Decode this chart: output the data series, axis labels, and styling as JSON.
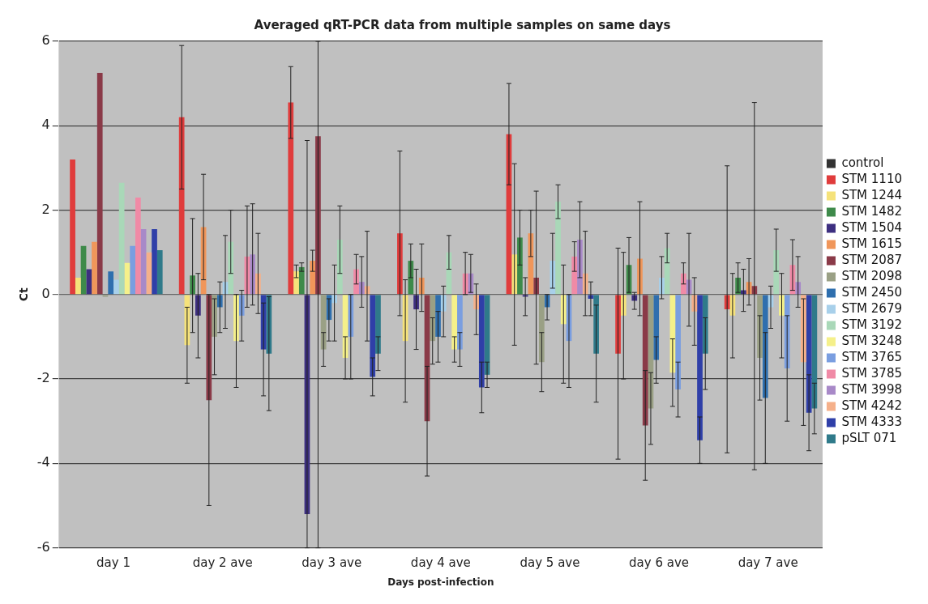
{
  "chart_data": {
    "type": "bar",
    "title": "Averaged qRT-PCR data from multiple samples on same days",
    "xlabel": "Days post-infection",
    "ylabel": "Ct",
    "categories": [
      "day 1",
      "day 2 ave",
      "day 3 ave",
      "day 4 ave",
      "day 5 ave",
      "day 6 ave",
      "day 7 ave"
    ],
    "ylim": [
      -6,
      6
    ],
    "yticks": [
      -6,
      -4,
      -2,
      0,
      2,
      4,
      6
    ],
    "grid": "y",
    "legend": "right",
    "series": [
      {
        "name": "control",
        "color": "#333333",
        "values": [
          0,
          0,
          0,
          0,
          0,
          0,
          0
        ]
      },
      {
        "name": "STM 1110",
        "color": "#e03c3c",
        "values": [
          3.2,
          4.2,
          4.55,
          1.45,
          3.8,
          -1.4,
          -0.35
        ],
        "errors": [
          null,
          1.7,
          0.85,
          1.95,
          1.2,
          2.5,
          3.4
        ]
      },
      {
        "name": "STM 1244",
        "color": "#f5e27a",
        "values": [
          0.4,
          -1.2,
          0.55,
          -1.1,
          0.95,
          -0.5,
          -0.5
        ],
        "errors": [
          null,
          0.9,
          0.15,
          1.45,
          2.15,
          1.5,
          1.0
        ]
      },
      {
        "name": "STM 1482",
        "color": "#3e8a4a",
        "values": [
          1.15,
          0.45,
          0.65,
          0.8,
          1.35,
          0.7,
          0.4
        ],
        "errors": [
          null,
          1.35,
          0.1,
          0.4,
          0.65,
          0.65,
          0.35
        ]
      },
      {
        "name": "STM 1504",
        "color": "#3d2f80",
        "values": [
          0.6,
          -0.5,
          -5.2,
          -0.35,
          -0.05,
          -0.15,
          0.1
        ],
        "errors": [
          null,
          1.0,
          [
            -6,
            3.65
          ],
          0.95,
          0.45,
          0.2,
          0.5
        ]
      },
      {
        "name": "STM 1615",
        "color": "#f0965a",
        "values": [
          1.25,
          1.6,
          0.8,
          0.4,
          1.45,
          0.85,
          0.3
        ],
        "errors": [
          null,
          1.25,
          0.25,
          0.8,
          0.55,
          1.35,
          0.55
        ]
      },
      {
        "name": "STM 2087",
        "color": "#8a3a48",
        "values": [
          5.25,
          -2.5,
          3.75,
          -3.0,
          0.4,
          -3.1,
          0.2
        ],
        "errors": [
          null,
          2.5,
          [
            -6,
            6
          ],
          1.3,
          2.05,
          1.3,
          4.35
        ]
      },
      {
        "name": "STM 2098",
        "color": "#9aa085",
        "values": [
          -0.05,
          -1.0,
          -1.3,
          -1.1,
          -1.6,
          -2.7,
          -1.5
        ],
        "errors": [
          null,
          0.9,
          0.4,
          0.55,
          0.7,
          0.85,
          1.0
        ]
      },
      {
        "name": "STM 2450",
        "color": "#2f6fae",
        "values": [
          0.55,
          -0.3,
          -0.6,
          -1.0,
          -0.3,
          -1.55,
          -2.45
        ],
        "errors": [
          null,
          0.6,
          0.5,
          0.6,
          0.3,
          0.55,
          1.55
        ]
      },
      {
        "name": "STM 2679",
        "color": "#a8d0ea",
        "values": [
          0.35,
          0.3,
          -0.2,
          -0.4,
          0.8,
          0.4,
          -0.3
        ],
        "errors": [
          null,
          1.1,
          0.9,
          0.6,
          0.65,
          0.5,
          0.5
        ]
      },
      {
        "name": "STM 3192",
        "color": "#a9d8b8",
        "values": [
          2.65,
          1.25,
          1.3,
          1.0,
          2.2,
          1.1,
          1.05
        ],
        "errors": [
          null,
          0.75,
          0.8,
          0.4,
          0.4,
          0.35,
          0.5
        ]
      },
      {
        "name": "STM 3248",
        "color": "#f5f08a",
        "values": [
          0.75,
          -1.1,
          -1.5,
          -1.3,
          -0.7,
          -1.85,
          -0.5
        ],
        "errors": [
          null,
          1.1,
          0.5,
          0.3,
          1.4,
          0.8,
          1.0
        ]
      },
      {
        "name": "STM 3765",
        "color": "#7a9ee0",
        "values": [
          1.15,
          -0.5,
          -1.0,
          -1.3,
          -1.1,
          -2.25,
          -1.75
        ],
        "errors": [
          null,
          0.6,
          1.0,
          0.4,
          1.1,
          0.65,
          1.25
        ]
      },
      {
        "name": "STM 3785",
        "color": "#f08aa6",
        "values": [
          2.3,
          0.9,
          0.6,
          0.5,
          0.9,
          0.5,
          0.7
        ],
        "errors": [
          null,
          1.2,
          0.35,
          0.5,
          0.35,
          0.25,
          0.6
        ]
      },
      {
        "name": "STM 3998",
        "color": "#a889c8",
        "values": [
          1.55,
          0.95,
          0.3,
          0.5,
          1.3,
          0.35,
          0.3
        ],
        "errors": [
          null,
          1.2,
          0.6,
          0.45,
          0.9,
          1.1,
          0.6
        ]
      },
      {
        "name": "STM 4242",
        "color": "#f5b08a",
        "values": [
          1.0,
          0.5,
          0.2,
          -0.35,
          0.5,
          -0.4,
          -1.6
        ],
        "errors": [
          null,
          0.95,
          1.3,
          0.6,
          1.0,
          0.8,
          1.5
        ]
      },
      {
        "name": "STM 4333",
        "color": "#2f3fa8",
        "values": [
          1.55,
          -1.3,
          -1.95,
          -2.2,
          -0.1,
          -3.45,
          -2.8
        ],
        "errors": [
          null,
          1.1,
          0.45,
          0.6,
          0.4,
          0.55,
          0.9
        ]
      },
      {
        "name": "pSLT 071",
        "color": "#2f7a8a",
        "values": [
          1.05,
          -1.4,
          -1.4,
          -1.9,
          -1.4,
          -1.4,
          -2.7
        ],
        "errors": [
          null,
          1.35,
          0.4,
          0.3,
          1.15,
          0.85,
          0.6
        ]
      }
    ]
  }
}
